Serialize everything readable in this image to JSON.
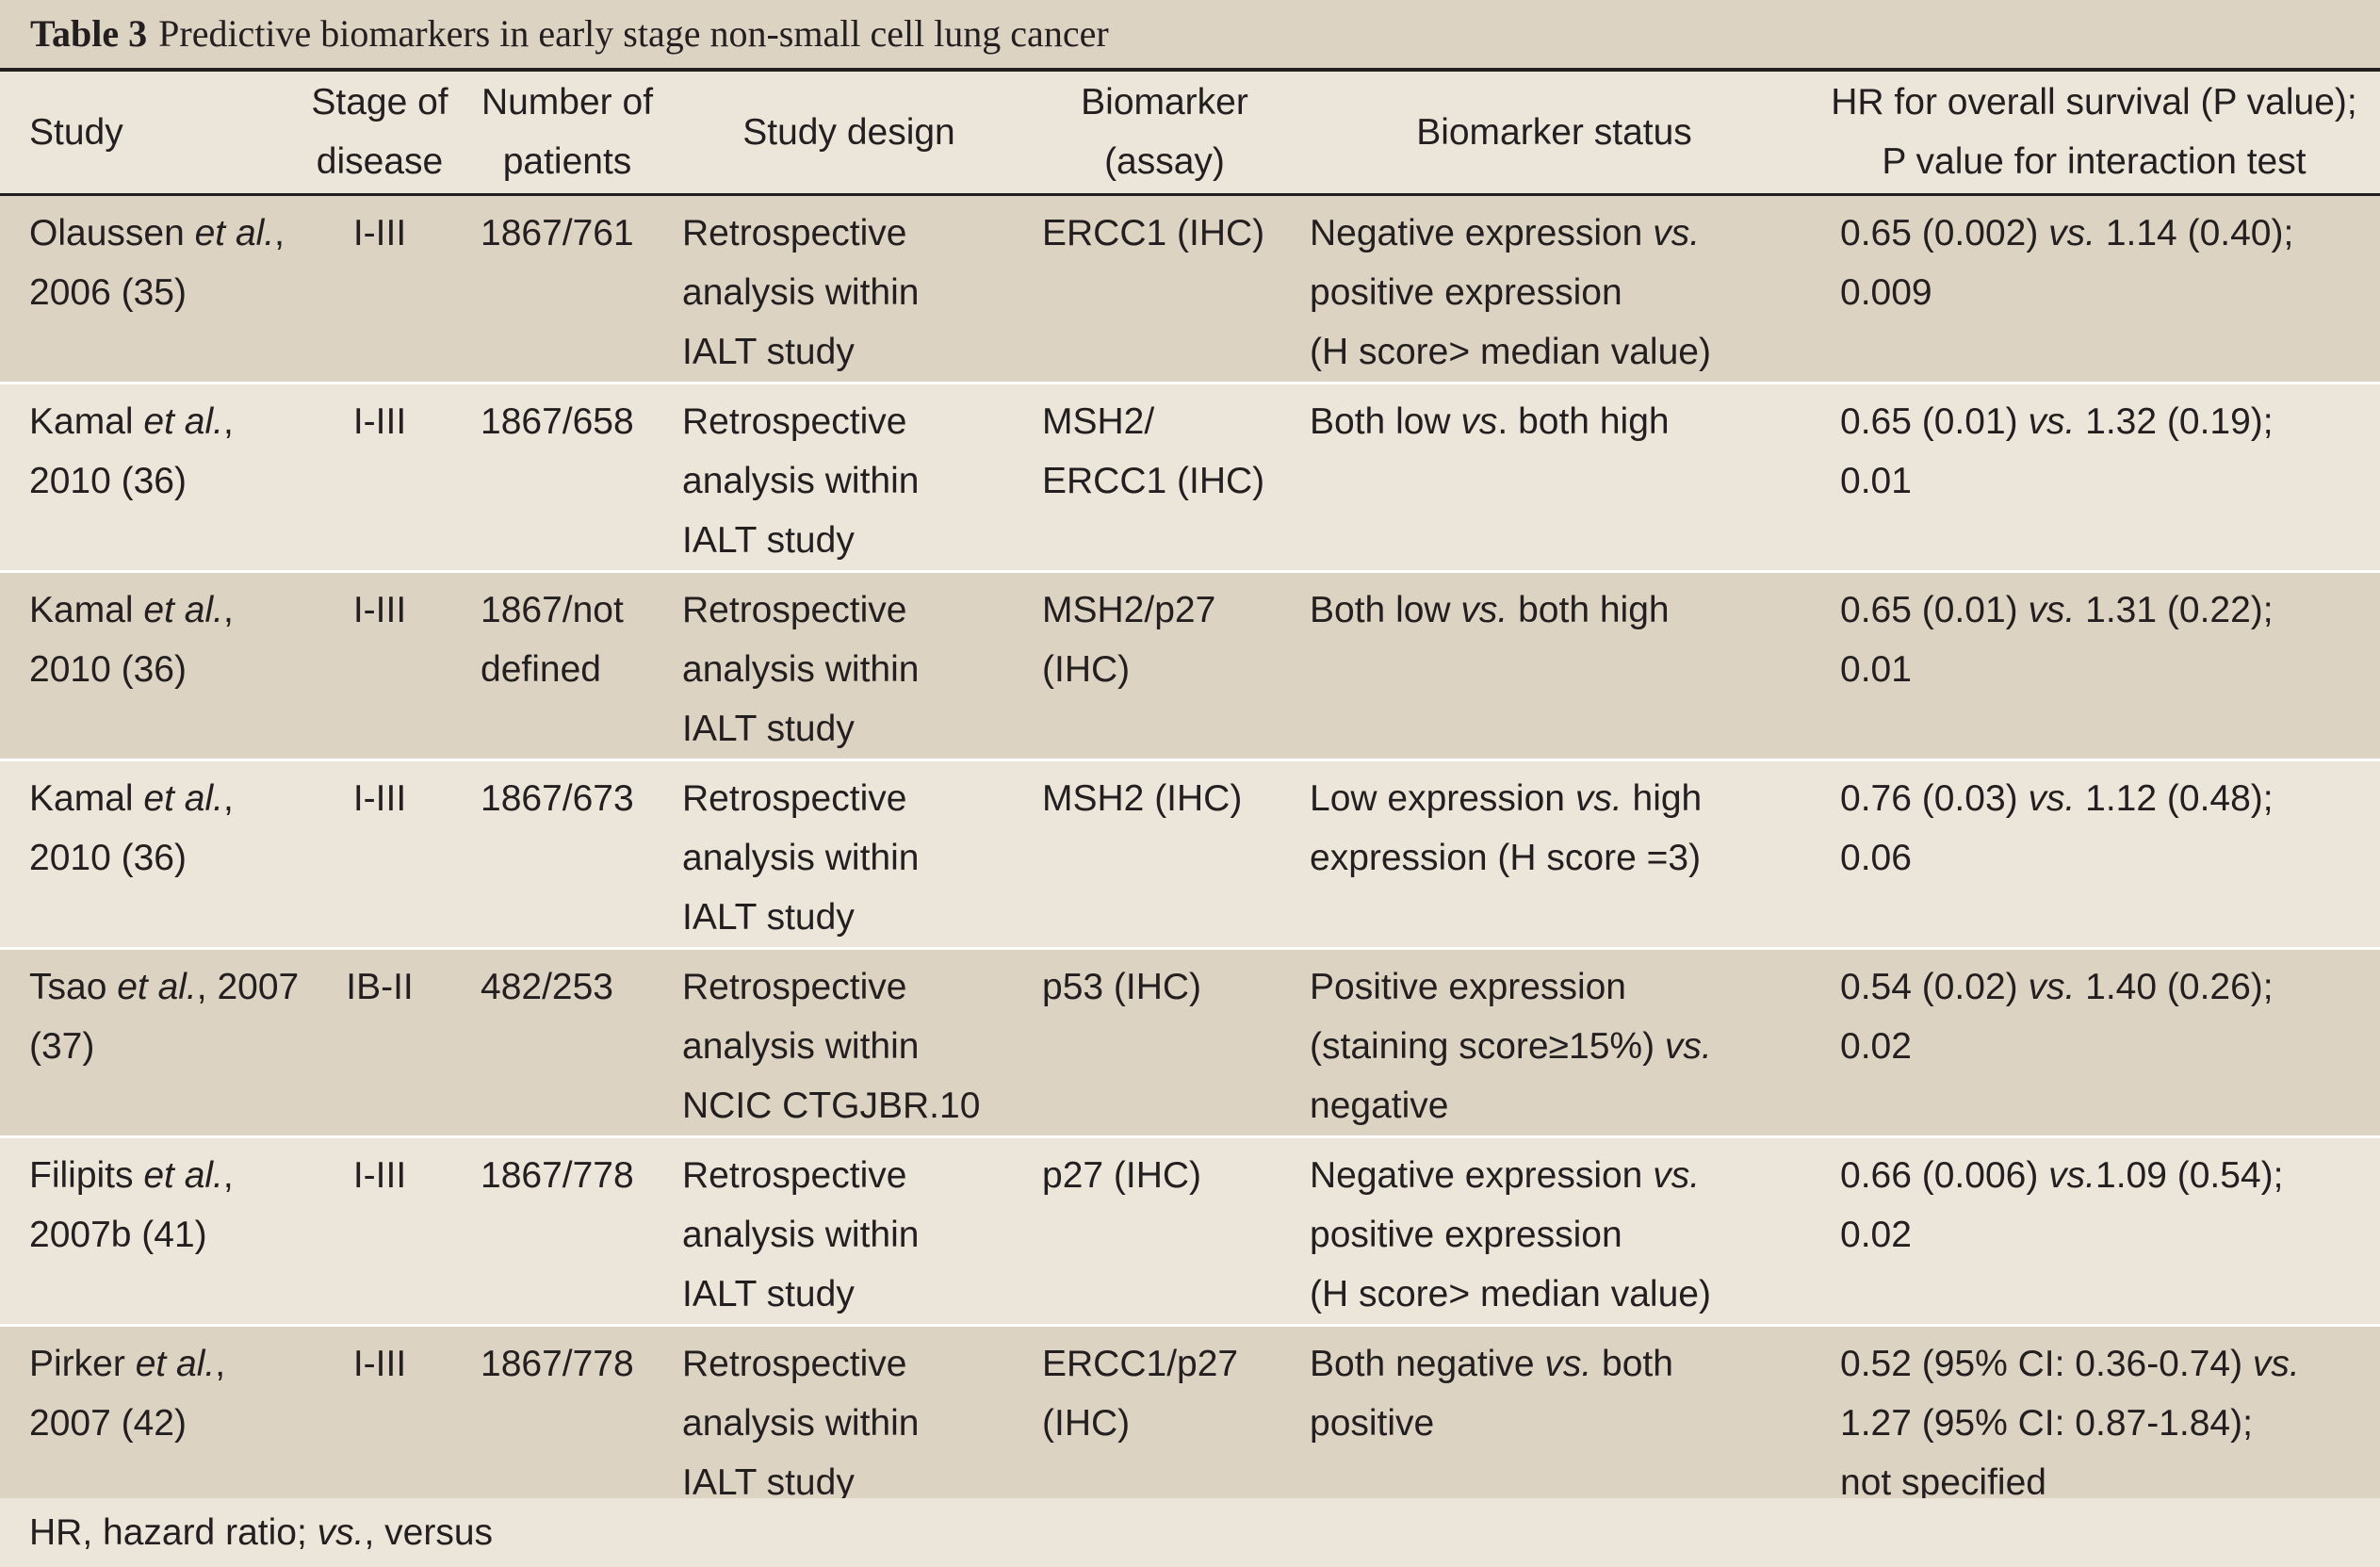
{
  "caption": {
    "label": "Table 3",
    "text": "Predictive biomarkers in early stage non-small cell lung cancer"
  },
  "headers": {
    "study": [
      "Study"
    ],
    "stage": [
      "Stage of",
      "disease"
    ],
    "number": [
      "Number of",
      "patients"
    ],
    "design": [
      "Study design"
    ],
    "biomarker": [
      "Biomarker",
      "(assay)"
    ],
    "status": [
      "Biomarker status"
    ],
    "hr": [
      "HR for overall survival (P value);",
      "P value for interaction test"
    ]
  },
  "rows": [
    {
      "study": [
        [
          [
            "Olaussen ",
            ""
          ],
          [
            "et al.",
            "it"
          ],
          [
            ",",
            ""
          ]
        ],
        [
          [
            "2006 (35)",
            ""
          ]
        ]
      ],
      "stage": "I-III",
      "number": [
        [
          [
            "1867/761",
            ""
          ]
        ]
      ],
      "design": [
        [
          [
            "Retrospective",
            ""
          ]
        ],
        [
          [
            "analysis within",
            ""
          ]
        ],
        [
          [
            "IALT study",
            ""
          ]
        ]
      ],
      "biomarker": [
        [
          [
            "ERCC1 (IHC)",
            ""
          ]
        ]
      ],
      "status": [
        [
          [
            "Negative expression ",
            ""
          ],
          [
            "vs.",
            "it"
          ]
        ],
        [
          [
            "positive expression",
            ""
          ]
        ],
        [
          [
            "(H score> median value)",
            ""
          ]
        ]
      ],
      "hr": [
        [
          [
            "0.65 (0.002) ",
            ""
          ],
          [
            "vs.",
            "it"
          ],
          [
            " 1.14 (0.40);",
            ""
          ]
        ],
        [
          [
            "0.009",
            ""
          ]
        ]
      ]
    },
    {
      "study": [
        [
          [
            "Kamal ",
            ""
          ],
          [
            "et al.",
            "it"
          ],
          [
            ",",
            ""
          ]
        ],
        [
          [
            "2010 (36)",
            ""
          ]
        ]
      ],
      "stage": "I-III",
      "number": [
        [
          [
            "1867/658",
            ""
          ]
        ]
      ],
      "design": [
        [
          [
            "Retrospective",
            ""
          ]
        ],
        [
          [
            "analysis within",
            ""
          ]
        ],
        [
          [
            "IALT study",
            ""
          ]
        ]
      ],
      "biomarker": [
        [
          [
            "MSH2/",
            ""
          ]
        ],
        [
          [
            "ERCC1 (IHC)",
            ""
          ]
        ]
      ],
      "status": [
        [
          [
            "Both low ",
            ""
          ],
          [
            "vs",
            "it"
          ],
          [
            ". both high",
            ""
          ]
        ]
      ],
      "hr": [
        [
          [
            "0.65 (0.01) ",
            ""
          ],
          [
            "vs.",
            "it"
          ],
          [
            " 1.32 (0.19);",
            ""
          ]
        ],
        [
          [
            "0.01",
            ""
          ]
        ]
      ]
    },
    {
      "study": [
        [
          [
            "Kamal ",
            ""
          ],
          [
            "et al.",
            "it"
          ],
          [
            ",",
            ""
          ]
        ],
        [
          [
            "2010 (36)",
            ""
          ]
        ]
      ],
      "stage": "I-III",
      "number": [
        [
          [
            "1867/not",
            ""
          ]
        ],
        [
          [
            "defined",
            ""
          ]
        ]
      ],
      "design": [
        [
          [
            "Retrospective",
            ""
          ]
        ],
        [
          [
            "analysis within",
            ""
          ]
        ],
        [
          [
            "IALT study",
            ""
          ]
        ]
      ],
      "biomarker": [
        [
          [
            "MSH2/p27",
            ""
          ]
        ],
        [
          [
            "(IHC)",
            ""
          ]
        ]
      ],
      "status": [
        [
          [
            "Both low ",
            ""
          ],
          [
            "vs.",
            "it"
          ],
          [
            " both high",
            ""
          ]
        ]
      ],
      "hr": [
        [
          [
            "0.65 (0.01) ",
            ""
          ],
          [
            "vs.",
            "it"
          ],
          [
            " 1.31 (0.22);",
            ""
          ]
        ],
        [
          [
            "0.01",
            ""
          ]
        ]
      ]
    },
    {
      "study": [
        [
          [
            "Kamal ",
            ""
          ],
          [
            "et al.",
            "it"
          ],
          [
            ",",
            ""
          ]
        ],
        [
          [
            "2010 (36)",
            ""
          ]
        ]
      ],
      "stage": "I-III",
      "number": [
        [
          [
            "1867/673",
            ""
          ]
        ]
      ],
      "design": [
        [
          [
            "Retrospective",
            ""
          ]
        ],
        [
          [
            "analysis within",
            ""
          ]
        ],
        [
          [
            "IALT study",
            ""
          ]
        ]
      ],
      "biomarker": [
        [
          [
            "MSH2 (IHC)",
            ""
          ]
        ]
      ],
      "status": [
        [
          [
            "Low expression ",
            ""
          ],
          [
            "vs.",
            "it"
          ],
          [
            " high",
            ""
          ]
        ],
        [
          [
            "expression (H score =3)",
            ""
          ]
        ]
      ],
      "hr": [
        [
          [
            "0.76 (0.03) ",
            ""
          ],
          [
            "vs.",
            "it"
          ],
          [
            " 1.12 (0.48);",
            ""
          ]
        ],
        [
          [
            "0.06",
            ""
          ]
        ]
      ]
    },
    {
      "study": [
        [
          [
            "Tsao ",
            ""
          ],
          [
            "et al.",
            "it"
          ],
          [
            ", 2007",
            ""
          ]
        ],
        [
          [
            "(37)",
            ""
          ]
        ]
      ],
      "stage": "IB-II",
      "number": [
        [
          [
            "482/253",
            ""
          ]
        ]
      ],
      "design": [
        [
          [
            "Retrospective",
            ""
          ]
        ],
        [
          [
            "analysis within",
            ""
          ]
        ],
        [
          [
            "NCIC CTGJBR.10",
            ""
          ]
        ]
      ],
      "biomarker": [
        [
          [
            "p53 (IHC)",
            ""
          ]
        ]
      ],
      "status": [
        [
          [
            "Positive expression",
            ""
          ]
        ],
        [
          [
            "(staining score≥15%) ",
            ""
          ],
          [
            "vs.",
            "it"
          ]
        ],
        [
          [
            "negative",
            ""
          ]
        ]
      ],
      "hr": [
        [
          [
            "0.54 (0.02) ",
            ""
          ],
          [
            "vs.",
            "it"
          ],
          [
            " 1.40 (0.26);",
            ""
          ]
        ],
        [
          [
            "0.02",
            ""
          ]
        ]
      ]
    },
    {
      "study": [
        [
          [
            "Filipits ",
            ""
          ],
          [
            "et al.",
            "it"
          ],
          [
            ",",
            ""
          ]
        ],
        [
          [
            "2007b (41)",
            ""
          ]
        ]
      ],
      "stage": "I-III",
      "number": [
        [
          [
            "1867/778",
            ""
          ]
        ]
      ],
      "design": [
        [
          [
            "Retrospective",
            ""
          ]
        ],
        [
          [
            "analysis within",
            ""
          ]
        ],
        [
          [
            "IALT study",
            ""
          ]
        ]
      ],
      "biomarker": [
        [
          [
            "p27 (IHC)",
            ""
          ]
        ]
      ],
      "status": [
        [
          [
            "Negative expression ",
            ""
          ],
          [
            "vs.",
            "it"
          ]
        ],
        [
          [
            "positive expression",
            ""
          ]
        ],
        [
          [
            "(H score> median value)",
            ""
          ]
        ]
      ],
      "hr": [
        [
          [
            "0.66 (0.006) ",
            ""
          ],
          [
            "vs.",
            "it"
          ],
          [
            "1.09 (0.54);",
            ""
          ]
        ],
        [
          [
            "0.02",
            ""
          ]
        ]
      ]
    },
    {
      "study": [
        [
          [
            "Pirker ",
            ""
          ],
          [
            "et al.",
            "it"
          ],
          [
            ",",
            ""
          ]
        ],
        [
          [
            "2007 (42)",
            ""
          ]
        ]
      ],
      "stage": "I-III",
      "number": [
        [
          [
            "1867/778",
            ""
          ]
        ]
      ],
      "design": [
        [
          [
            "Retrospective",
            ""
          ]
        ],
        [
          [
            "analysis within",
            ""
          ]
        ],
        [
          [
            "IALT study",
            ""
          ]
        ]
      ],
      "biomarker": [
        [
          [
            "ERCC1/p27",
            ""
          ]
        ],
        [
          [
            "(IHC)",
            ""
          ]
        ]
      ],
      "status": [
        [
          [
            "Both negative ",
            ""
          ],
          [
            "vs.",
            "it"
          ],
          [
            " both",
            ""
          ]
        ],
        [
          [
            "positive",
            ""
          ]
        ]
      ],
      "hr": [
        [
          [
            "0.52 (95% CI: 0.36-0.74) ",
            ""
          ],
          [
            "vs.",
            "it"
          ]
        ],
        [
          [
            "1.27 (95% CI: 0.87-1.84);",
            ""
          ]
        ],
        [
          [
            "not specified",
            ""
          ]
        ]
      ]
    }
  ],
  "footnote": [
    [
      "HR, hazard ratio; ",
      ""
    ],
    [
      "vs.",
      "it"
    ],
    [
      ", versus",
      ""
    ]
  ]
}
